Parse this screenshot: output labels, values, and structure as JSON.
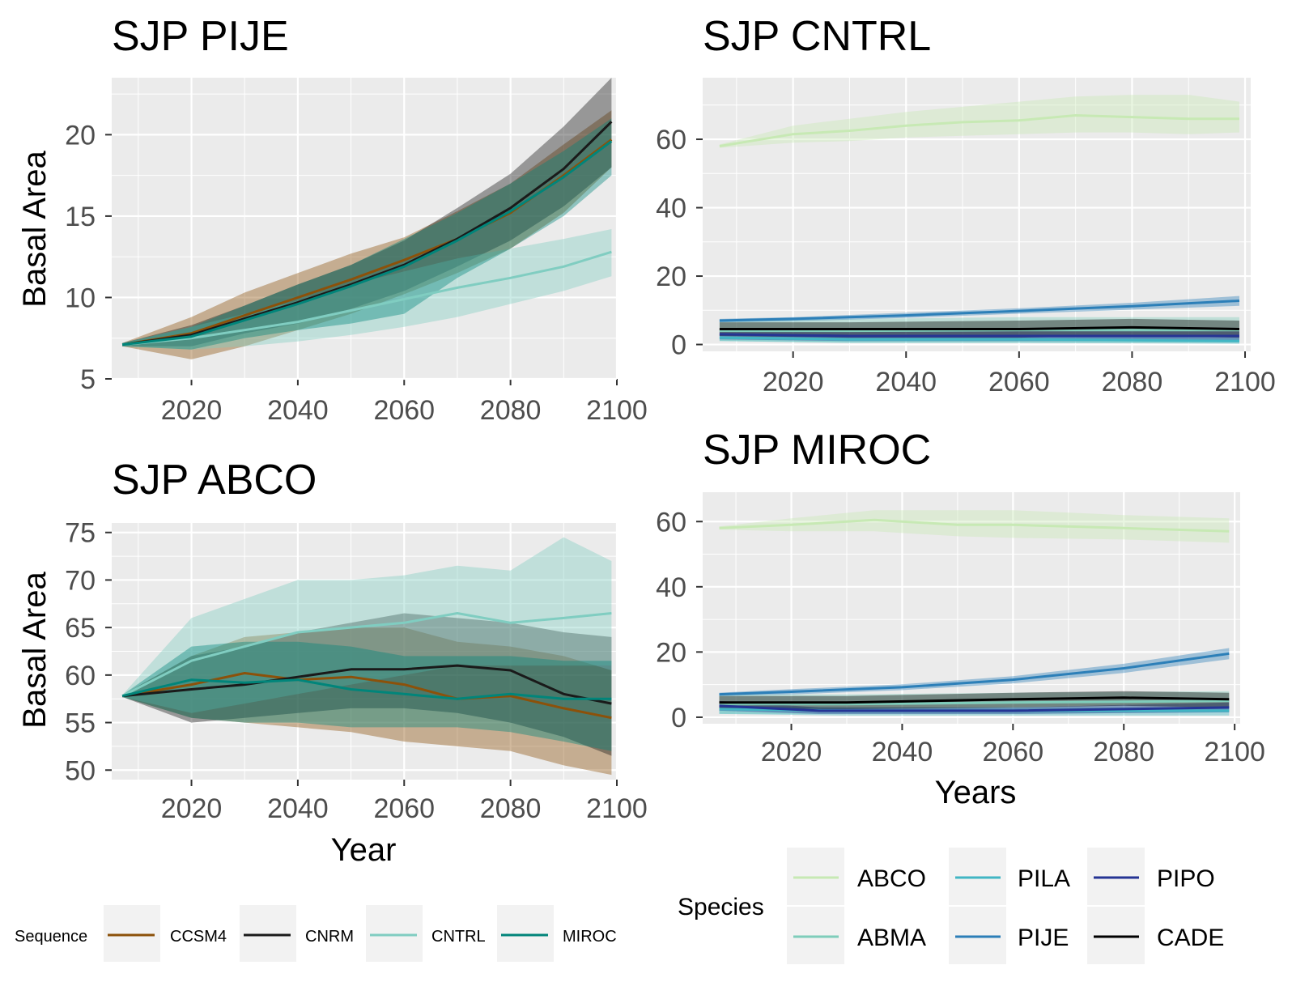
{
  "colors": {
    "panel_bg": "#ebebeb",
    "grid": "#ffffff",
    "tick_text": "#4d4d4d",
    "legend_key_bg": "#f2f2f2",
    "CCSM4": "#8c510a",
    "CNRM": "#1a1a1a",
    "CNTRL": "#80cdc1",
    "MIROC": "#01857a",
    "ABCO": "#c7e9b4",
    "ABMA": "#7fcdbb",
    "PILA": "#41b6c4",
    "PIJE": "#2c7fb8",
    "PIPO": "#253494",
    "CADE": "#000000"
  },
  "legends": {
    "sequence": {
      "title": "Sequence",
      "items": [
        "CCSM4",
        "CNRM",
        "CNTRL",
        "MIROC"
      ]
    },
    "species": {
      "title": "Species",
      "items": [
        "ABCO",
        "PILA",
        "PIPO",
        "ABMA",
        "PIJE",
        "CADE"
      ]
    }
  },
  "chart_data": [
    {
      "type": "line",
      "title": "SJP PIJE",
      "xlabel": "",
      "ylabel": "Basal Area",
      "xlim": [
        2005,
        2100
      ],
      "ylim": [
        5,
        23.5
      ],
      "xticks": [
        2020,
        2040,
        2060,
        2080,
        2100
      ],
      "yticks": [
        5,
        10,
        15,
        20
      ],
      "grid": true,
      "series": [
        {
          "name": "CCSM4",
          "x": [
            2007,
            2020,
            2030,
            2040,
            2050,
            2060,
            2070,
            2080,
            2090,
            2099
          ],
          "y": [
            7.1,
            7.8,
            8.9,
            10.0,
            11.1,
            12.3,
            13.6,
            15.2,
            17.5,
            19.7
          ],
          "lower": [
            7.0,
            6.2,
            7.0,
            8.0,
            9.0,
            10.2,
            11.5,
            13.0,
            15.2,
            18.0
          ],
          "upper": [
            7.2,
            8.8,
            10.3,
            11.5,
            12.7,
            13.7,
            15.3,
            17.0,
            19.4,
            21.5
          ]
        },
        {
          "name": "CNRM",
          "x": [
            2007,
            2020,
            2030,
            2040,
            2050,
            2060,
            2070,
            2080,
            2090,
            2099
          ],
          "y": [
            7.1,
            7.7,
            8.7,
            9.7,
            10.8,
            12.0,
            13.6,
            15.5,
            17.9,
            20.8
          ],
          "lower": [
            7.0,
            7.0,
            7.8,
            8.4,
            9.3,
            10.4,
            11.9,
            13.5,
            15.6,
            18.0
          ],
          "upper": [
            7.2,
            8.3,
            9.5,
            10.8,
            12.0,
            13.5,
            15.5,
            17.6,
            20.5,
            23.5
          ]
        },
        {
          "name": "CNTRL",
          "x": [
            2007,
            2020,
            2030,
            2040,
            2050,
            2060,
            2070,
            2080,
            2090,
            2099
          ],
          "y": [
            7.1,
            7.5,
            8.0,
            8.5,
            9.2,
            9.9,
            10.6,
            11.2,
            11.9,
            12.8
          ],
          "lower": [
            7.0,
            6.8,
            7.0,
            7.3,
            7.7,
            8.2,
            8.8,
            9.6,
            10.4,
            11.3
          ],
          "upper": [
            7.2,
            8.2,
            9.0,
            9.8,
            10.8,
            11.6,
            12.4,
            13.0,
            13.6,
            14.2
          ]
        },
        {
          "name": "MIROC",
          "x": [
            2007,
            2020,
            2030,
            2040,
            2050,
            2060,
            2070,
            2080,
            2090,
            2099
          ],
          "y": [
            7.1,
            7.6,
            8.6,
            9.6,
            10.7,
            11.9,
            13.5,
            15.3,
            17.4,
            19.6
          ],
          "lower": [
            7.0,
            6.8,
            7.5,
            8.0,
            8.4,
            9.0,
            11.2,
            13.0,
            15.0,
            17.5
          ],
          "upper": [
            7.2,
            8.2,
            9.5,
            10.8,
            12.0,
            13.6,
            15.2,
            17.0,
            19.0,
            21.0
          ]
        }
      ]
    },
    {
      "type": "line",
      "title": "SJP ABCO",
      "xlabel": "Year",
      "ylabel": "Basal Area",
      "xlim": [
        2005,
        2100
      ],
      "ylim": [
        49,
        76
      ],
      "xticks": [
        2020,
        2040,
        2060,
        2080,
        2100
      ],
      "yticks": [
        50,
        55,
        60,
        65,
        70,
        75
      ],
      "grid": true,
      "series": [
        {
          "name": "CCSM4",
          "x": [
            2007,
            2020,
            2030,
            2040,
            2050,
            2060,
            2070,
            2080,
            2090,
            2099
          ],
          "y": [
            57.8,
            59.0,
            60.2,
            59.5,
            59.8,
            59.0,
            57.5,
            57.8,
            56.5,
            55.5
          ],
          "lower": [
            57.7,
            55.5,
            55.0,
            54.5,
            54.0,
            53.0,
            52.5,
            52.0,
            50.5,
            49.5
          ],
          "upper": [
            57.9,
            62.0,
            64.0,
            64.5,
            65.0,
            65.0,
            63.5,
            63.0,
            62.0,
            60.5
          ]
        },
        {
          "name": "CNRM",
          "x": [
            2007,
            2020,
            2030,
            2040,
            2050,
            2060,
            2070,
            2080,
            2090,
            2099
          ],
          "y": [
            57.8,
            58.5,
            59.0,
            59.8,
            60.6,
            60.6,
            61.0,
            60.5,
            58.0,
            57.0
          ],
          "lower": [
            57.7,
            55.0,
            55.5,
            56.0,
            56.5,
            56.5,
            56.0,
            55.0,
            53.5,
            51.5
          ],
          "upper": [
            57.9,
            62.0,
            63.0,
            64.5,
            65.5,
            66.5,
            66.0,
            65.5,
            64.5,
            64.0
          ]
        },
        {
          "name": "CNTRL",
          "x": [
            2007,
            2020,
            2030,
            2040,
            2050,
            2060,
            2070,
            2080,
            2090,
            2099
          ],
          "y": [
            57.8,
            61.5,
            63.0,
            64.5,
            65.0,
            65.5,
            66.5,
            65.5,
            66.0,
            66.5
          ],
          "lower": [
            57.7,
            56.0,
            57.0,
            58.0,
            59.0,
            60.0,
            61.0,
            61.0,
            61.0,
            61.0
          ],
          "upper": [
            57.9,
            66.0,
            68.0,
            70.0,
            70.0,
            70.5,
            71.5,
            71.0,
            74.5,
            72.0
          ]
        },
        {
          "name": "MIROC",
          "x": [
            2007,
            2020,
            2030,
            2040,
            2050,
            2060,
            2070,
            2080,
            2090,
            2099
          ],
          "y": [
            57.8,
            59.5,
            59.2,
            59.5,
            58.5,
            58.0,
            57.5,
            58.0,
            57.5,
            57.5
          ],
          "lower": [
            57.7,
            55.5,
            55.0,
            55.0,
            54.5,
            54.5,
            54.5,
            54.0,
            53.0,
            52.0
          ],
          "upper": [
            57.9,
            63.0,
            63.5,
            63.5,
            63.0,
            62.0,
            62.0,
            62.0,
            61.5,
            61.5
          ]
        }
      ]
    },
    {
      "type": "line",
      "title": "SJP CNTRL",
      "xlabel": "",
      "ylabel": "",
      "xlim": [
        2004,
        2101
      ],
      "ylim": [
        -2,
        78
      ],
      "xticks": [
        2020,
        2040,
        2060,
        2080,
        2100
      ],
      "yticks": [
        0,
        20,
        40,
        60
      ],
      "grid": true,
      "series": [
        {
          "name": "ABCO",
          "x": [
            2007,
            2020,
            2030,
            2040,
            2050,
            2060,
            2070,
            2080,
            2090,
            2099
          ],
          "y": [
            58.0,
            61.5,
            62.5,
            64.0,
            65.0,
            65.5,
            67.0,
            66.5,
            66.0,
            66.0
          ],
          "lower": [
            57.5,
            59.0,
            59.5,
            60.5,
            61.0,
            61.5,
            62.0,
            62.0,
            61.5,
            62.0
          ],
          "upper": [
            58.5,
            64.0,
            66.0,
            68.0,
            69.5,
            71.0,
            72.5,
            73.0,
            73.0,
            71.0
          ]
        },
        {
          "name": "ABMA",
          "x": [
            2007,
            2030,
            2060,
            2099
          ],
          "y": [
            4.0,
            4.0,
            4.2,
            4.2
          ],
          "lower": [
            1.0,
            0.5,
            0.5,
            0.5
          ],
          "upper": [
            7.0,
            7.5,
            8.0,
            8.0
          ]
        },
        {
          "name": "PILA",
          "x": [
            2007,
            2030,
            2060,
            2099
          ],
          "y": [
            2.0,
            1.5,
            1.5,
            1.0
          ],
          "lower": [
            1.0,
            0.5,
            0.5,
            0.2
          ],
          "upper": [
            3.0,
            2.5,
            2.5,
            2.0
          ]
        },
        {
          "name": "PIJE",
          "x": [
            2007,
            2020,
            2040,
            2060,
            2080,
            2099
          ],
          "y": [
            7.0,
            7.5,
            8.5,
            9.8,
            11.2,
            12.8
          ],
          "lower": [
            6.5,
            6.8,
            7.8,
            9.0,
            10.2,
            11.3
          ],
          "upper": [
            7.5,
            8.0,
            9.3,
            10.6,
            12.2,
            14.2
          ]
        },
        {
          "name": "PIPO",
          "x": [
            2007,
            2030,
            2060,
            2099
          ],
          "y": [
            3.0,
            2.5,
            2.5,
            2.5
          ],
          "lower": [
            1.5,
            1.0,
            1.0,
            1.0
          ],
          "upper": [
            4.5,
            4.0,
            4.0,
            4.5
          ]
        },
        {
          "name": "CADE",
          "x": [
            2007,
            2030,
            2060,
            2080,
            2099
          ],
          "y": [
            4.5,
            4.5,
            4.5,
            5.0,
            4.5
          ],
          "lower": [
            2.5,
            2.0,
            2.0,
            2.5,
            2.0
          ],
          "upper": [
            6.5,
            6.5,
            7.0,
            7.5,
            7.0
          ]
        }
      ]
    },
    {
      "type": "line",
      "title": "SJP MIROC",
      "xlabel": "Years",
      "ylabel": "",
      "xlim": [
        2004,
        2101
      ],
      "ylim": [
        -2,
        69
      ],
      "xticks": [
        2020,
        2040,
        2060,
        2080,
        2100
      ],
      "yticks": [
        0,
        20,
        40,
        60
      ],
      "grid": true,
      "series": [
        {
          "name": "ABCO",
          "x": [
            2007,
            2020,
            2035,
            2050,
            2060,
            2080,
            2099
          ],
          "y": [
            58.0,
            59.0,
            60.5,
            59.0,
            59.0,
            58.0,
            57.0
          ],
          "lower": [
            57.5,
            57.0,
            57.0,
            55.5,
            55.0,
            54.5,
            53.5
          ],
          "upper": [
            58.5,
            61.0,
            63.5,
            63.5,
            63.5,
            62.0,
            61.0
          ]
        },
        {
          "name": "ABMA",
          "x": [
            2007,
            2030,
            2060,
            2099
          ],
          "y": [
            4.0,
            4.0,
            4.5,
            5.0
          ],
          "lower": [
            1.0,
            1.0,
            1.0,
            1.5
          ],
          "upper": [
            7.0,
            7.0,
            7.5,
            8.0
          ]
        },
        {
          "name": "PILA",
          "x": [
            2007,
            2030,
            2060,
            2099
          ],
          "y": [
            2.5,
            2.0,
            2.0,
            2.0
          ],
          "lower": [
            1.0,
            0.5,
            0.5,
            0.5
          ],
          "upper": [
            3.5,
            3.0,
            3.0,
            3.0
          ]
        },
        {
          "name": "PIJE",
          "x": [
            2007,
            2020,
            2040,
            2060,
            2080,
            2099
          ],
          "y": [
            7.0,
            7.8,
            9.2,
            11.5,
            15.0,
            19.5
          ],
          "lower": [
            6.5,
            7.0,
            8.3,
            10.4,
            13.6,
            17.8
          ],
          "upper": [
            7.5,
            8.6,
            10.1,
            12.6,
            16.4,
            21.2
          ]
        },
        {
          "name": "PIPO",
          "x": [
            2007,
            2025,
            2060,
            2099
          ],
          "y": [
            3.5,
            2.0,
            2.0,
            3.0
          ],
          "lower": [
            2.0,
            1.0,
            1.0,
            1.5
          ],
          "upper": [
            5.0,
            3.0,
            3.0,
            4.5
          ]
        },
        {
          "name": "CADE",
          "x": [
            2007,
            2030,
            2060,
            2080,
            2099
          ],
          "y": [
            4.5,
            4.5,
            5.5,
            6.0,
            5.5
          ],
          "lower": [
            2.5,
            2.5,
            3.0,
            3.5,
            3.0
          ],
          "upper": [
            6.5,
            6.5,
            7.5,
            8.0,
            7.5
          ]
        }
      ]
    }
  ]
}
